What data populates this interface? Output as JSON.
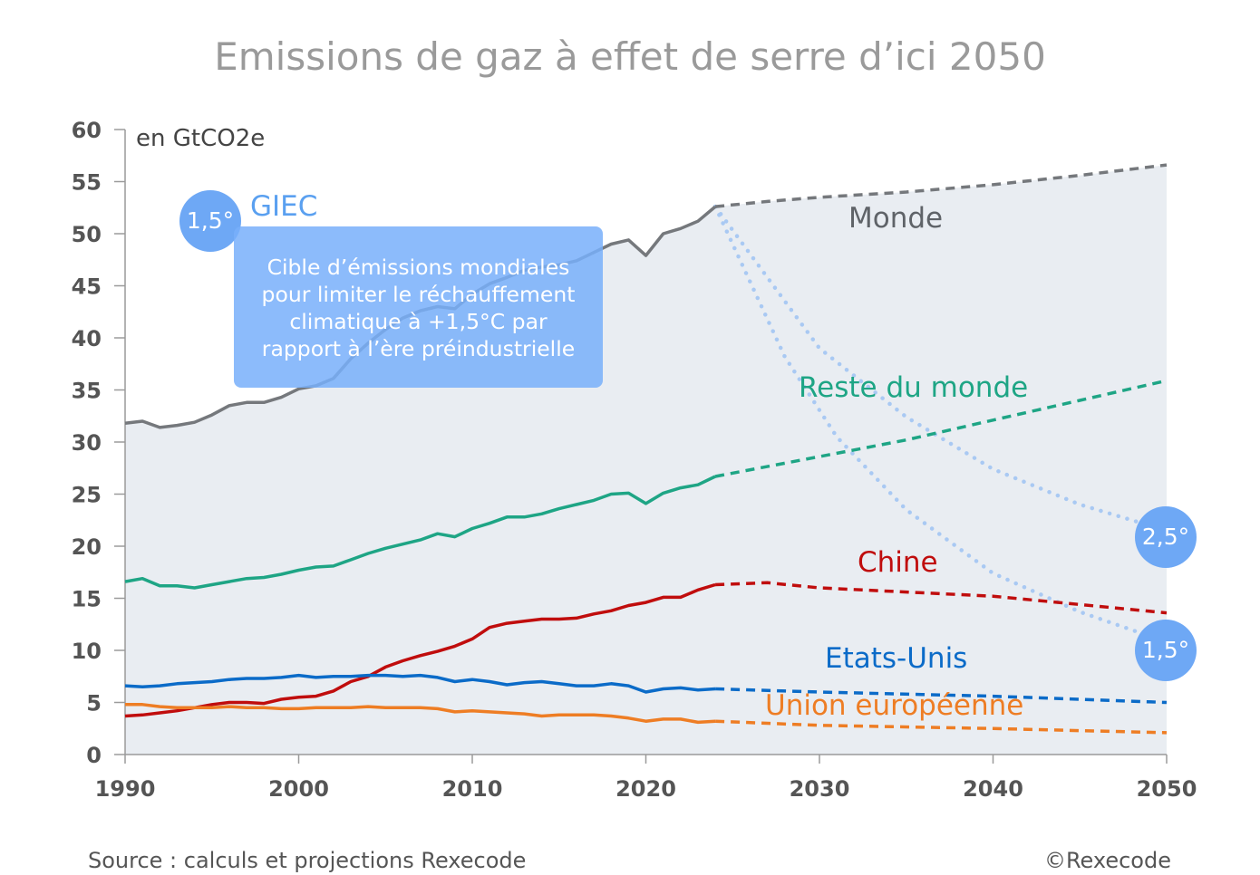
{
  "chart_data": {
    "type": "line",
    "title": "Emissions de gaz à effet de serre d’ici 2050",
    "unit_label": "en GtCO2e",
    "xlim": [
      1990,
      2050
    ],
    "ylim": [
      0,
      60
    ],
    "x_ticks": [
      "1990",
      "2000",
      "2010",
      "2020",
      "2030",
      "2040",
      "2050"
    ],
    "y_ticks": [
      "0",
      "5",
      "10",
      "15",
      "20",
      "25",
      "30",
      "35",
      "40",
      "45",
      "50",
      "55",
      "60"
    ],
    "grid": false,
    "series": [
      {
        "name": "Monde",
        "color": "#75787c",
        "historical_x": [
          1990,
          1991,
          1992,
          1993,
          1994,
          1995,
          1996,
          1997,
          1998,
          1999,
          2000,
          2001,
          2002,
          2003,
          2004,
          2005,
          2006,
          2007,
          2008,
          2009,
          2010,
          2011,
          2012,
          2013,
          2014,
          2015,
          2016,
          2017,
          2018,
          2019,
          2020,
          2021,
          2022,
          2023,
          2024
        ],
        "historical_y": [
          31.8,
          32.0,
          31.4,
          31.6,
          31.9,
          32.6,
          33.5,
          33.8,
          33.8,
          34.3,
          35.1,
          35.4,
          36.1,
          38.0,
          39.5,
          40.8,
          41.9,
          42.6,
          43.0,
          42.8,
          44.2,
          45.2,
          45.8,
          46.5,
          46.8,
          47.0,
          47.4,
          48.2,
          49.0,
          49.4,
          47.9,
          50.0,
          50.5,
          51.2,
          52.6
        ],
        "projection_x": [
          2024,
          2027,
          2030,
          2035,
          2040,
          2045,
          2050
        ],
        "projection_y": [
          52.6,
          53.1,
          53.5,
          54.0,
          54.7,
          55.6,
          56.6
        ]
      },
      {
        "name": "Reste du monde",
        "color": "#1ea585",
        "historical_x": [
          1990,
          1991,
          1992,
          1993,
          1994,
          1995,
          1996,
          1997,
          1998,
          1999,
          2000,
          2001,
          2002,
          2003,
          2004,
          2005,
          2006,
          2007,
          2008,
          2009,
          2010,
          2011,
          2012,
          2013,
          2014,
          2015,
          2016,
          2017,
          2018,
          2019,
          2020,
          2021,
          2022,
          2023,
          2024
        ],
        "historical_y": [
          16.6,
          16.9,
          16.2,
          16.2,
          16.0,
          16.3,
          16.6,
          16.9,
          17.0,
          17.3,
          17.7,
          18.0,
          18.1,
          18.7,
          19.3,
          19.8,
          20.2,
          20.6,
          21.2,
          20.9,
          21.7,
          22.2,
          22.8,
          22.8,
          23.1,
          23.6,
          24.0,
          24.4,
          25.0,
          25.1,
          24.1,
          25.1,
          25.6,
          25.9,
          26.7
        ],
        "projection_x": [
          2024,
          2030,
          2035,
          2040,
          2045,
          2050
        ],
        "projection_y": [
          26.7,
          28.6,
          30.2,
          32.1,
          34.0,
          35.9
        ]
      },
      {
        "name": "Chine",
        "color": "#c00d0d",
        "historical_x": [
          1990,
          1991,
          1992,
          1993,
          1994,
          1995,
          1996,
          1997,
          1998,
          1999,
          2000,
          2001,
          2002,
          2003,
          2004,
          2005,
          2006,
          2007,
          2008,
          2009,
          2010,
          2011,
          2012,
          2013,
          2014,
          2015,
          2016,
          2017,
          2018,
          2019,
          2020,
          2021,
          2022,
          2023,
          2024
        ],
        "historical_y": [
          3.7,
          3.8,
          4.0,
          4.2,
          4.5,
          4.8,
          5.0,
          5.0,
          4.9,
          5.3,
          5.5,
          5.6,
          6.1,
          7.0,
          7.5,
          8.4,
          9.0,
          9.5,
          9.9,
          10.4,
          11.1,
          12.2,
          12.6,
          12.8,
          13.0,
          13.0,
          13.1,
          13.5,
          13.8,
          14.3,
          14.6,
          15.1,
          15.1,
          15.8,
          16.3
        ],
        "projection_x": [
          2024,
          2027,
          2030,
          2035,
          2040,
          2045,
          2050
        ],
        "projection_y": [
          16.3,
          16.5,
          16.0,
          15.6,
          15.2,
          14.4,
          13.6
        ]
      },
      {
        "name": "Etats-Unis",
        "color": "#0b6bc8",
        "historical_x": [
          1990,
          1991,
          1992,
          1993,
          1994,
          1995,
          1996,
          1997,
          1998,
          1999,
          2000,
          2001,
          2002,
          2003,
          2004,
          2005,
          2006,
          2007,
          2008,
          2009,
          2010,
          2011,
          2012,
          2013,
          2014,
          2015,
          2016,
          2017,
          2018,
          2019,
          2020,
          2021,
          2022,
          2023,
          2024
        ],
        "historical_y": [
          6.6,
          6.5,
          6.6,
          6.8,
          6.9,
          7.0,
          7.2,
          7.3,
          7.3,
          7.4,
          7.6,
          7.4,
          7.5,
          7.5,
          7.6,
          7.6,
          7.5,
          7.6,
          7.4,
          7.0,
          7.2,
          7.0,
          6.7,
          6.9,
          7.0,
          6.8,
          6.6,
          6.6,
          6.8,
          6.6,
          6.0,
          6.3,
          6.4,
          6.2,
          6.3
        ],
        "projection_x": [
          2024,
          2030,
          2040,
          2050
        ],
        "projection_y": [
          6.3,
          6.0,
          5.6,
          5.0
        ]
      },
      {
        "name": "Union européenne",
        "color": "#ee7d24",
        "historical_x": [
          1990,
          1991,
          1992,
          1993,
          1994,
          1995,
          1996,
          1997,
          1998,
          1999,
          2000,
          2001,
          2002,
          2003,
          2004,
          2005,
          2006,
          2007,
          2008,
          2009,
          2010,
          2011,
          2012,
          2013,
          2014,
          2015,
          2016,
          2017,
          2018,
          2019,
          2020,
          2021,
          2022,
          2023,
          2024
        ],
        "historical_y": [
          4.8,
          4.8,
          4.6,
          4.5,
          4.5,
          4.5,
          4.6,
          4.5,
          4.5,
          4.4,
          4.4,
          4.5,
          4.5,
          4.5,
          4.6,
          4.5,
          4.5,
          4.5,
          4.4,
          4.1,
          4.2,
          4.1,
          4.0,
          3.9,
          3.7,
          3.8,
          3.8,
          3.8,
          3.7,
          3.5,
          3.2,
          3.4,
          3.4,
          3.1,
          3.2
        ],
        "projection_x": [
          2024,
          2030,
          2040,
          2050
        ],
        "projection_y": [
          3.2,
          2.8,
          2.5,
          2.1
        ]
      }
    ],
    "scenario_paths": [
      {
        "label": "2,5°",
        "x": [
          2024,
          2030,
          2035,
          2040,
          2045,
          2050
        ],
        "y": [
          52.6,
          39.0,
          32.4,
          27.4,
          24.0,
          21.5
        ]
      },
      {
        "label": "1,5°",
        "x": [
          2024,
          2028,
          2031,
          2035,
          2040,
          2045,
          2050
        ],
        "y": [
          52.6,
          38.2,
          30.5,
          23.5,
          17.4,
          13.7,
          10.8
        ]
      }
    ],
    "annotations": {
      "giec_badge": "1,5°",
      "giec_label": "GIEC",
      "target_text": [
        "Cible d’émissions mondiales",
        "pour limiter le réchauffement",
        "climatique à +1,5°C par",
        "rapport à l’ère préindustrielle"
      ],
      "end_badge_25": "2,5°",
      "end_badge_15": "1,5°"
    },
    "footer": {
      "source": "Source : calculs et projections Rexecode",
      "copyright": "©Rexecode"
    },
    "colors": {
      "background_area": "#e9edf2",
      "axis": "#9a9a9a",
      "badge": "#6ea8f5",
      "scenario_dots": "#a9c9f3"
    }
  }
}
